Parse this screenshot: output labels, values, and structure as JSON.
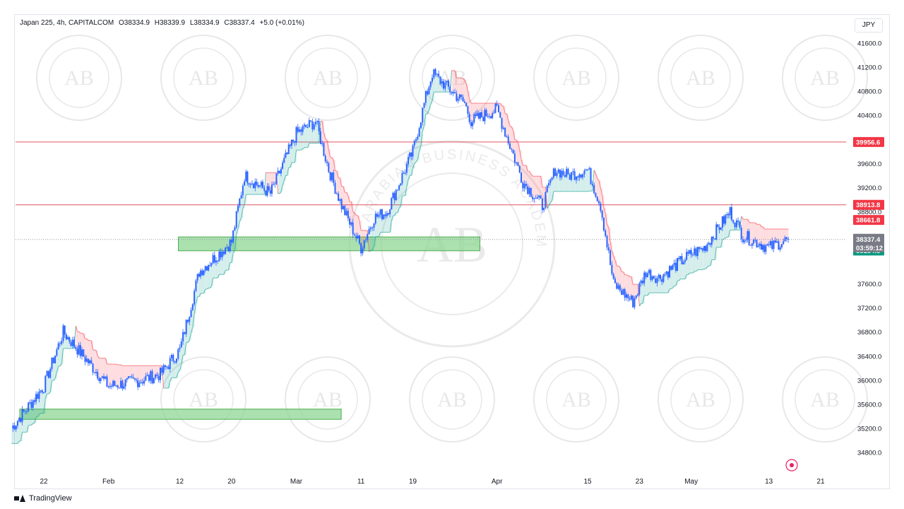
{
  "header": {
    "symbol": "Japan 225, 4h, CAPITALCOM",
    "open": "O38334.9",
    "high": "H38339.9",
    "low": "L38334.9",
    "close": "C38337.4",
    "change": "+5.0 (+0.01%)"
  },
  "currency": "JPY",
  "footer": {
    "brand": "TradingView"
  },
  "watermark": {
    "text": "ARABIAN BUSINESS ACADEMY",
    "logo": "AB"
  },
  "price_labels": {
    "resistance_upper": "39956.6",
    "resistance_lower": "38913.8",
    "band_top": "38661.8",
    "last_price": "38337.4",
    "countdown": "03:59:12",
    "band_bottom": "38154.5"
  },
  "colors": {
    "up_candle": "#2962ff",
    "red_line": "#e05565",
    "red_label": "#f23645",
    "green_label": "#089981",
    "zone_fill": "#8fd694",
    "cloud_green": "#26a69a",
    "cloud_red": "#f7525f"
  },
  "chart_data": {
    "type": "line",
    "title": "Japan 225, 4h, CAPITALCOM",
    "ylim": [
      34600,
      41900
    ],
    "y_ticks": [
      34800,
      35200,
      35600,
      36000,
      36400,
      36800,
      37200,
      37600,
      38000,
      38400,
      38800,
      39200,
      39600,
      40000,
      40400,
      40800,
      41200,
      41600
    ],
    "y_tick_labels": [
      "34800.0",
      "35200.0",
      "35600.0",
      "36000.0",
      "36400.0",
      "36800.0",
      "37200.0",
      "37600.0",
      "",
      "",
      "38800.0",
      "39200.0",
      "39600.0",
      "",
      "40400.0",
      "40800.0",
      "41200.0",
      "41600.0"
    ],
    "x_labels": [
      "22",
      "Feb",
      "12",
      "20",
      "Mar",
      "11",
      "19",
      "Apr",
      "15",
      "23",
      "May",
      "13",
      "21"
    ],
    "horizontal_lines": [
      39956.6,
      38913.8
    ],
    "zones": [
      {
        "from_x": "12",
        "to_x": "Mar 19",
        "low": 38150,
        "high": 38380
      },
      {
        "from_x": "22",
        "to_x": "Mar 11",
        "low": 35350,
        "high": 35520
      }
    ],
    "series": [
      {
        "name": "Japan 225",
        "x": [
          "Jan 17",
          "Jan 22",
          "Jan 25",
          "Feb 1",
          "Feb 6",
          "Feb 9",
          "Feb 12",
          "Feb 15",
          "Feb 20",
          "Feb 22",
          "Feb 26",
          "Mar 1",
          "Mar 4",
          "Mar 6",
          "Mar 8",
          "Mar 11",
          "Mar 13",
          "Mar 15",
          "Mar 19",
          "Mar 21",
          "Mar 22",
          "Mar 25",
          "Mar 27",
          "Mar 28",
          "Apr 1",
          "Apr 3",
          "Apr 5",
          "Apr 8",
          "Apr 10",
          "Apr 12",
          "Apr 15",
          "Apr 17",
          "Apr 19",
          "Apr 22",
          "Apr 24",
          "Apr 26",
          "May 1",
          "May 3",
          "May 7",
          "May 9",
          "May 13",
          "May 15",
          "May 16"
        ],
        "values": [
          35200,
          35900,
          36800,
          35900,
          36000,
          36100,
          36500,
          37800,
          38300,
          39400,
          39100,
          40100,
          40300,
          39500,
          38900,
          38200,
          38700,
          38800,
          39800,
          40700,
          41100,
          40800,
          40600,
          40300,
          40500,
          39900,
          39300,
          38900,
          39500,
          39400,
          39500,
          38900,
          37600,
          37300,
          37800,
          37700,
          38100,
          38200,
          38800,
          38400,
          38200,
          38300,
          38337.4
        ]
      }
    ],
    "grid": false
  }
}
